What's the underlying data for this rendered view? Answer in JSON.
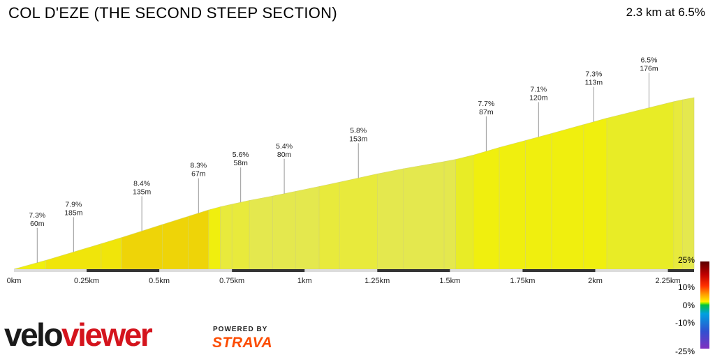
{
  "header": {
    "title": "COL D'EZE (THE SECOND STEEP SECTION)",
    "summary": "2.3 km at 6.5%"
  },
  "branding": {
    "logo_part1": "velo",
    "logo_part2": "viewer",
    "powered_by": "POWERED BY",
    "strava": "STRAVA"
  },
  "legend": {
    "labels": [
      "25%",
      "10%",
      "0%",
      "-10%",
      "-25%"
    ]
  },
  "chart_data": {
    "type": "area",
    "xlabel": "",
    "ylabel": "",
    "xlim": [
      0,
      2.34
    ],
    "ylim": [
      0,
      150
    ],
    "x_ticks": [
      {
        "v": 0,
        "label": "0km"
      },
      {
        "v": 0.25,
        "label": "0.25km"
      },
      {
        "v": 0.5,
        "label": "0.5km"
      },
      {
        "v": 0.75,
        "label": "0.75km"
      },
      {
        "v": 1.0,
        "label": "1km"
      },
      {
        "v": 1.25,
        "label": "1.25km"
      },
      {
        "v": 1.5,
        "label": "1.5km"
      },
      {
        "v": 1.75,
        "label": "1.75km"
      },
      {
        "v": 2.0,
        "label": "2km"
      },
      {
        "v": 2.25,
        "label": "2.25km"
      }
    ],
    "segments": [
      {
        "x0": 0.0,
        "x1": 0.11,
        "grade": 7.3
      },
      {
        "x0": 0.11,
        "x1": 0.3,
        "grade": 7.9
      },
      {
        "x0": 0.3,
        "x1": 0.37,
        "grade": 8.0
      },
      {
        "x0": 0.37,
        "x1": 0.51,
        "grade": 8.4
      },
      {
        "x0": 0.51,
        "x1": 0.6,
        "grade": 8.3
      },
      {
        "x0": 0.6,
        "x1": 0.67,
        "grade": 8.3
      },
      {
        "x0": 0.67,
        "x1": 0.71,
        "grade": 7.0
      },
      {
        "x0": 0.71,
        "x1": 0.75,
        "grade": 6.0
      },
      {
        "x0": 0.75,
        "x1": 0.81,
        "grade": 5.6
      },
      {
        "x0": 0.81,
        "x1": 0.89,
        "grade": 5.0
      },
      {
        "x0": 0.89,
        "x1": 0.97,
        "grade": 5.4
      },
      {
        "x0": 0.97,
        "x1": 1.05,
        "grade": 5.4
      },
      {
        "x0": 1.05,
        "x1": 1.12,
        "grade": 5.6
      },
      {
        "x0": 1.12,
        "x1": 1.25,
        "grade": 5.8
      },
      {
        "x0": 1.25,
        "x1": 1.34,
        "grade": 5.2
      },
      {
        "x0": 1.34,
        "x1": 1.48,
        "grade": 4.6
      },
      {
        "x0": 1.48,
        "x1": 1.52,
        "grade": 5.0
      },
      {
        "x0": 1.52,
        "x1": 1.58,
        "grade": 6.5
      },
      {
        "x0": 1.58,
        "x1": 1.67,
        "grade": 7.7
      },
      {
        "x0": 1.67,
        "x1": 1.76,
        "grade": 7.0
      },
      {
        "x0": 1.76,
        "x1": 1.85,
        "grade": 7.1
      },
      {
        "x0": 1.85,
        "x1": 1.96,
        "grade": 7.3
      },
      {
        "x0": 1.96,
        "x1": 2.04,
        "grade": 7.3
      },
      {
        "x0": 2.04,
        "x1": 2.27,
        "grade": 6.5
      },
      {
        "x0": 2.27,
        "x1": 2.3,
        "grade": 5.5
      },
      {
        "x0": 2.3,
        "x1": 2.34,
        "grade": 5.0
      }
    ],
    "annotations": [
      {
        "x": 0.08,
        "grade": "7.3%",
        "length": "60m"
      },
      {
        "x": 0.205,
        "grade": "7.9%",
        "length": "185m"
      },
      {
        "x": 0.44,
        "grade": "8.4%",
        "length": "135m"
      },
      {
        "x": 0.635,
        "grade": "8.3%",
        "length": "67m"
      },
      {
        "x": 0.78,
        "grade": "5.6%",
        "length": "58m"
      },
      {
        "x": 0.93,
        "grade": "5.4%",
        "length": "80m"
      },
      {
        "x": 1.185,
        "grade": "5.8%",
        "length": "153m"
      },
      {
        "x": 1.625,
        "grade": "7.7%",
        "length": "87m"
      },
      {
        "x": 1.805,
        "grade": "7.1%",
        "length": "120m"
      },
      {
        "x": 1.995,
        "grade": "7.3%",
        "length": "113m"
      },
      {
        "x": 2.185,
        "grade": "6.5%",
        "length": "176m"
      }
    ]
  }
}
